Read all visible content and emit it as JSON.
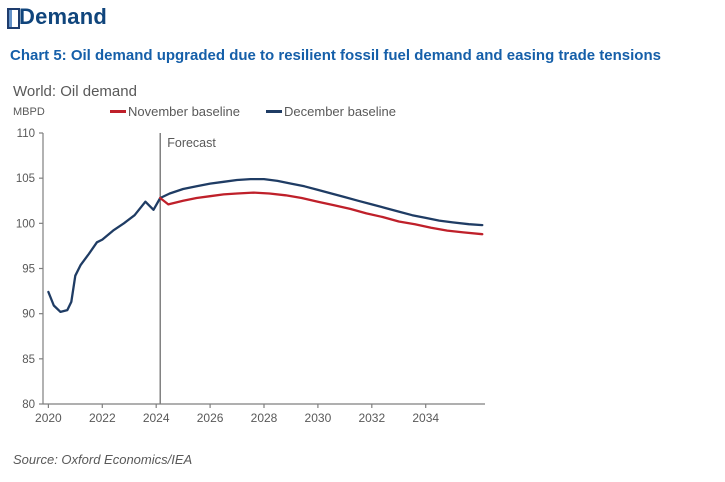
{
  "page": {
    "title": "Demand",
    "subtitle": "Chart 5: Oil demand upgraded due to resilient fossil fuel demand and easing trade tensions",
    "source": "Source: Oxford Economics/IEA"
  },
  "chart": {
    "title": "World: Oil demand",
    "unit_label": "MBPD"
  },
  "legend": [
    {
      "label": "November baseline",
      "color": "#bf202a"
    },
    {
      "label": "December baseline",
      "color": "#1f3c64"
    }
  ],
  "colors": {
    "heading_navy": "#10457c",
    "subtitle_blue": "#155fa9",
    "text_gray": "#595959",
    "axis_gray": "#7f7f7f",
    "forecast_line_gray": "#808080"
  },
  "chart_data": {
    "type": "line",
    "title": "World: Oil demand",
    "ylabel": "MBPD",
    "xlabel": "",
    "ylim": [
      80,
      110
    ],
    "xlim": [
      2019.8,
      2036.2
    ],
    "yticks": [
      80,
      85,
      90,
      95,
      100,
      105,
      110
    ],
    "xticks": [
      2020,
      2022,
      2024,
      2026,
      2028,
      2030,
      2032,
      2034
    ],
    "grid": false,
    "legend_position": "top",
    "forecast_start": 2024.15,
    "forecast_label": "Forecast",
    "series": [
      {
        "name": "December baseline",
        "color": "#1f3c64",
        "points": [
          [
            2020.0,
            92.4
          ],
          [
            2020.2,
            90.9
          ],
          [
            2020.45,
            90.2
          ],
          [
            2020.7,
            90.4
          ],
          [
            2020.85,
            91.3
          ],
          [
            2021.0,
            94.2
          ],
          [
            2021.2,
            95.4
          ],
          [
            2021.5,
            96.6
          ],
          [
            2021.8,
            97.9
          ],
          [
            2022.0,
            98.2
          ],
          [
            2022.4,
            99.2
          ],
          [
            2022.8,
            100.0
          ],
          [
            2023.2,
            100.9
          ],
          [
            2023.6,
            102.4
          ],
          [
            2023.9,
            101.5
          ],
          [
            2024.15,
            102.8
          ],
          [
            2024.5,
            103.3
          ],
          [
            2025.0,
            103.8
          ],
          [
            2025.5,
            104.1
          ],
          [
            2026.0,
            104.4
          ],
          [
            2026.5,
            104.6
          ],
          [
            2027.0,
            104.8
          ],
          [
            2027.5,
            104.9
          ],
          [
            2028.0,
            104.9
          ],
          [
            2028.5,
            104.7
          ],
          [
            2029.0,
            104.4
          ],
          [
            2029.5,
            104.1
          ],
          [
            2030.0,
            103.7
          ],
          [
            2030.5,
            103.3
          ],
          [
            2031.0,
            102.9
          ],
          [
            2031.5,
            102.5
          ],
          [
            2032.0,
            102.1
          ],
          [
            2032.5,
            101.7
          ],
          [
            2033.0,
            101.3
          ],
          [
            2033.5,
            100.9
          ],
          [
            2034.0,
            100.6
          ],
          [
            2034.5,
            100.3
          ],
          [
            2035.0,
            100.1
          ],
          [
            2035.6,
            99.9
          ],
          [
            2036.1,
            99.8
          ]
        ]
      },
      {
        "name": "November baseline",
        "color": "#bf202a",
        "points": [
          [
            2024.15,
            102.8
          ],
          [
            2024.45,
            102.1
          ],
          [
            2025.0,
            102.5
          ],
          [
            2025.5,
            102.8
          ],
          [
            2026.0,
            103.0
          ],
          [
            2026.5,
            103.2
          ],
          [
            2027.0,
            103.3
          ],
          [
            2027.6,
            103.4
          ],
          [
            2028.2,
            103.3
          ],
          [
            2028.8,
            103.1
          ],
          [
            2029.4,
            102.8
          ],
          [
            2030.0,
            102.4
          ],
          [
            2030.6,
            102.0
          ],
          [
            2031.2,
            101.6
          ],
          [
            2031.8,
            101.1
          ],
          [
            2032.4,
            100.7
          ],
          [
            2033.0,
            100.2
          ],
          [
            2033.6,
            99.9
          ],
          [
            2034.2,
            99.5
          ],
          [
            2034.8,
            99.2
          ],
          [
            2035.4,
            99.0
          ],
          [
            2036.1,
            98.8
          ]
        ]
      }
    ]
  }
}
